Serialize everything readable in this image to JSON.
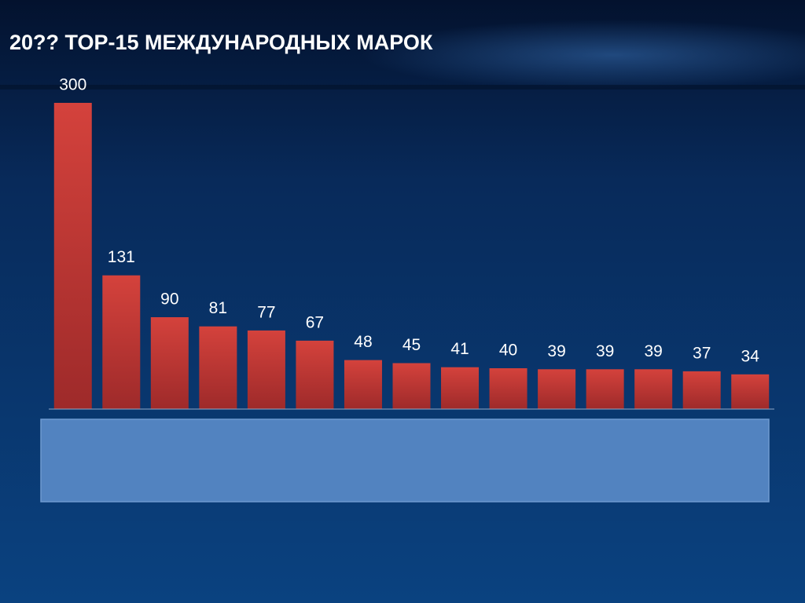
{
  "chart_data": {
    "type": "bar",
    "title": "20?? TOP-15 МЕЖДУНАРОДНЫХ МАРОК",
    "categories": [
      null,
      null,
      null,
      null,
      null,
      null,
      null,
      null,
      null,
      null,
      null,
      null,
      null,
      null,
      null
    ],
    "values": [
      300,
      131,
      90,
      81,
      77,
      67,
      48,
      45,
      41,
      40,
      39,
      39,
      39,
      37,
      34
    ],
    "color": "#d0403a",
    "ylim": [
      0,
      300
    ]
  }
}
